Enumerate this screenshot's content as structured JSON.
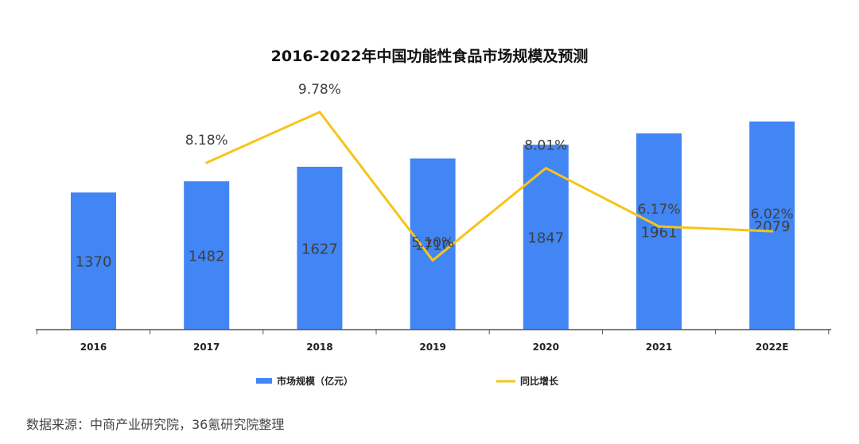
{
  "chart_data": {
    "type": "bar",
    "title": "2016-2022年中国功能性食品市场规模及预测",
    "categories": [
      "2016",
      "2017",
      "2018",
      "2019",
      "2020",
      "2021",
      "2022E"
    ],
    "series": [
      {
        "name": "市场规模（亿元）",
        "type": "bar",
        "values": [
          1370,
          1482,
          1627,
          1710,
          1847,
          1961,
          2079
        ],
        "labels": [
          "1370",
          "1482",
          "1627",
          "1710",
          "1847",
          "1961",
          "2079"
        ]
      },
      {
        "name": "同比增长",
        "type": "line",
        "values": [
          null,
          8.18,
          9.78,
          5.1,
          8.01,
          6.17,
          6.02
        ],
        "labels": [
          "",
          "8.18%",
          "9.78%",
          "5.10%",
          "8.01%",
          "6.17%",
          "6.02%"
        ]
      }
    ],
    "ylim_bar": [
      0,
      2200
    ],
    "ylim_line": [
      0,
      12
    ],
    "grid": false,
    "legend": "bottom",
    "colors": {
      "bar": "#4285f4",
      "line": "#f5c518",
      "axis": "#555555"
    }
  },
  "source": "数据来源：中商产业研究院，36氪研究院整理"
}
